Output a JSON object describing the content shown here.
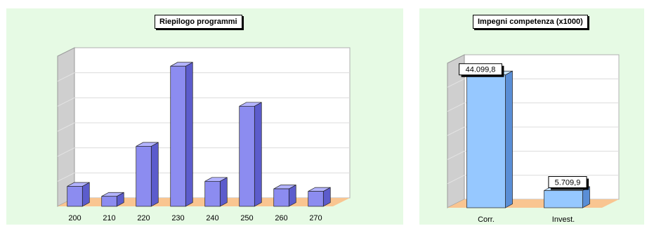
{
  "colors": {
    "panel_bg": "#e6fae4",
    "plot_bg": "#ffffff",
    "floor": "#f9c591",
    "left_wall": "#cfcfcf",
    "bar_left_front": "#8c8cf0",
    "bar_left_side": "#5c5ccc",
    "bar_left_top": "#b4b4ff",
    "bar_right_front": "#96c8ff",
    "bar_right_side": "#5a8ed6",
    "bar_right_top": "#c8e4ff"
  },
  "chart_data": [
    {
      "type": "bar",
      "title": "Riepilogo programmi",
      "categories": [
        "200",
        "210",
        "220",
        "230",
        "240",
        "250",
        "260",
        "270"
      ],
      "values": [
        8,
        4,
        24,
        56,
        10,
        40,
        7,
        6
      ],
      "ylim": [
        0,
        60
      ],
      "grid": true,
      "legend": "none",
      "three_d": true
    },
    {
      "type": "bar",
      "title": "Impegni competenza (x1000)",
      "categories": [
        "Corr.",
        "Invest."
      ],
      "values": [
        44099.8,
        5709.9
      ],
      "value_labels": [
        "44.099,8",
        "5.709,9"
      ],
      "ylim": [
        0,
        48000
      ],
      "grid": true,
      "legend": "none",
      "three_d": true
    }
  ]
}
